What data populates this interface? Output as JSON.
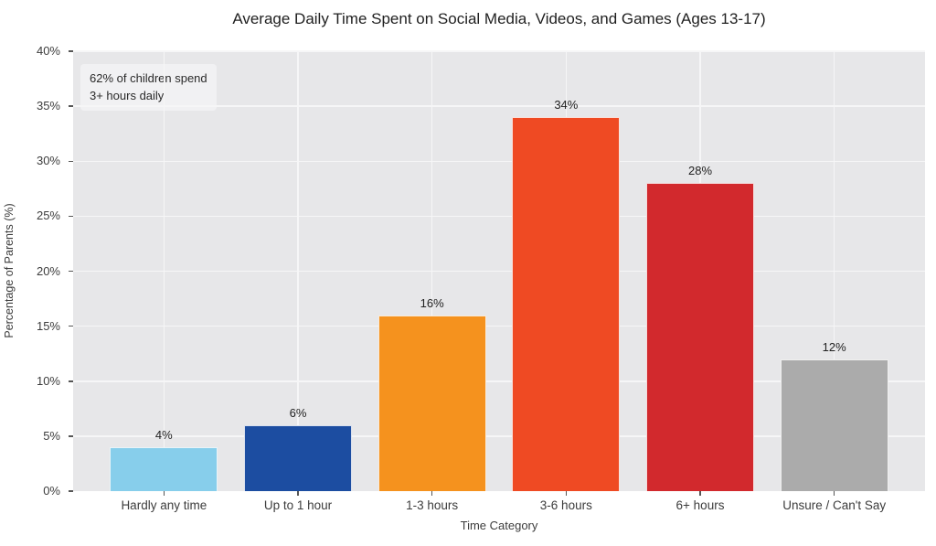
{
  "chart_data": {
    "type": "bar",
    "title": "Average Daily Time Spent on Social Media, Videos, and Games (Ages 13-17)",
    "xlabel": "Time Category",
    "ylabel": "Percentage of Parents (%)",
    "categories": [
      "Hardly any time",
      "Up to 1 hour",
      "1-3 hours",
      "3-6 hours",
      "6+ hours",
      "Unsure / Can't Say"
    ],
    "values": [
      4,
      6,
      16,
      34,
      28,
      12
    ],
    "value_labels": [
      "4%",
      "6%",
      "16%",
      "34%",
      "28%",
      "12%"
    ],
    "bar_colors": [
      "#87CEEB",
      "#1C4DA1",
      "#F5921E",
      "#EF4A23",
      "#D2292D",
      "#ABABAB"
    ],
    "ylim": [
      0,
      40
    ],
    "ytick_step": 5,
    "ytick_labels": [
      "0%",
      "5%",
      "10%",
      "15%",
      "20%",
      "25%",
      "30%",
      "35%",
      "40%"
    ],
    "grid": true,
    "legend": false,
    "plot_background": "#E7E7E9",
    "grid_color": "#F6F6F7",
    "annotation": {
      "lines": [
        "62% of children spend",
        "3+ hours daily"
      ]
    }
  }
}
